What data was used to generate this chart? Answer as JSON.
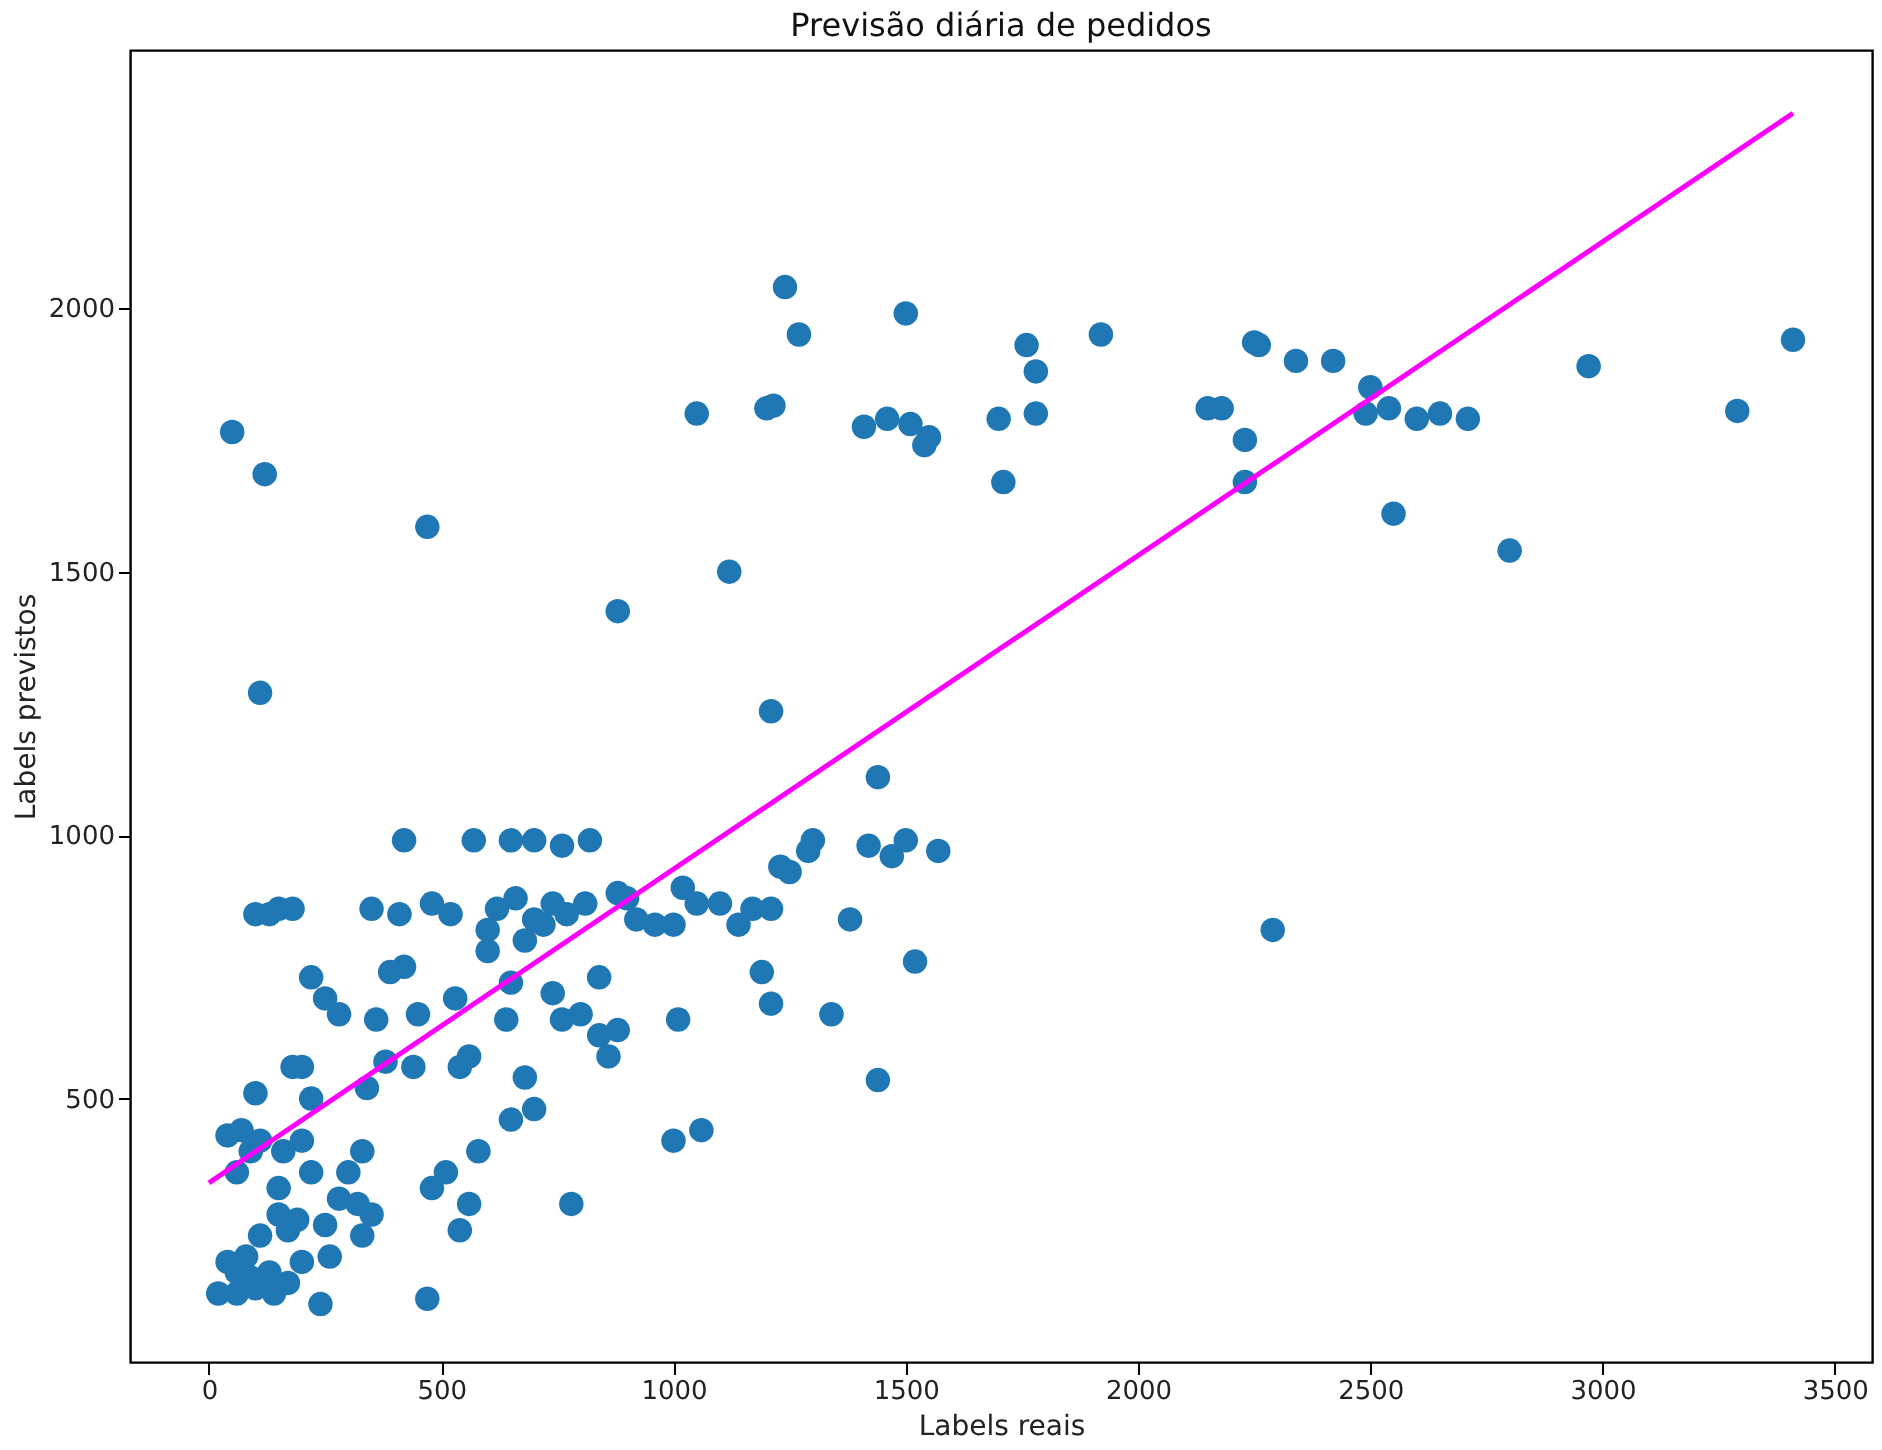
{
  "chart_data": {
    "type": "scatter",
    "title": "Previsão diária de pedidos",
    "xlabel": "Labels reais",
    "ylabel": "Labels previstos",
    "xlim": [
      -170,
      3580
    ],
    "ylim": [
      0,
      2490
    ],
    "xticks": [
      0,
      500,
      1000,
      1500,
      2000,
      2500,
      3000,
      3500
    ],
    "yticks": [
      500,
      1000,
      1500,
      2000
    ],
    "series": [
      {
        "color": "#1f77b4",
        "marker": "circle",
        "x": [
          50,
          120,
          470,
          110,
          880,
          1120,
          1210,
          1240,
          1270,
          1050,
          1200,
          1215,
          1410,
          1460,
          1510,
          1540,
          1550,
          1500,
          1700,
          1710,
          1760,
          1780,
          1780,
          1920,
          2150,
          2180,
          2230,
          2230,
          2260,
          2250,
          2340,
          2420,
          2500,
          2490,
          2540,
          2550,
          2600,
          2650,
          2710,
          2800,
          2970,
          3290,
          3410,
          2290,
          1440,
          1420,
          1470,
          1500,
          1570,
          1520,
          1440,
          1340,
          1380,
          1250,
          1290,
          1300,
          1230,
          1210,
          1170,
          1190,
          1210,
          1010,
          1000,
          1060,
          1100,
          1140,
          1050,
          1000,
          1020,
          960,
          920,
          900,
          880,
          860,
          840,
          880,
          760,
          820,
          780,
          740,
          760,
          800,
          840,
          700,
          650,
          570,
          420,
          660,
          620,
          600,
          600,
          650,
          640,
          680,
          700,
          650,
          580,
          560,
          540,
          480,
          470,
          510,
          540,
          530,
          560,
          450,
          410,
          420,
          390,
          360,
          350,
          480,
          520,
          440,
          380,
          340,
          330,
          300,
          320,
          330,
          350,
          280,
          250,
          220,
          200,
          220,
          180,
          130,
          150,
          180,
          100,
          100,
          70,
          40,
          110,
          90,
          60,
          160,
          150,
          150,
          170,
          110,
          80,
          40,
          60,
          90,
          130,
          200,
          260,
          250,
          240,
          190,
          20,
          60,
          100,
          140,
          170,
          200,
          280,
          220,
          680,
          700,
          740,
          720,
          770,
          810
        ],
        "values": [
          1765,
          1685,
          1585,
          1270,
          1425,
          1500,
          1235,
          2040,
          1950,
          1800,
          1810,
          1815,
          1775,
          1790,
          1780,
          1740,
          1755,
          1990,
          1790,
          1670,
          1930,
          1880,
          1800,
          1950,
          1810,
          1810,
          1670,
          1750,
          1930,
          1935,
          1900,
          1900,
          1850,
          1800,
          1810,
          1610,
          1790,
          1800,
          1790,
          1540,
          1890,
          1805,
          1940,
          820,
          1110,
          980,
          960,
          990,
          970,
          760,
          535,
          660,
          840,
          930,
          970,
          990,
          940,
          860,
          860,
          740,
          680,
          650,
          420,
          440,
          870,
          830,
          870,
          830,
          900,
          830,
          840,
          880,
          630,
          580,
          620,
          890,
          980,
          990,
          300,
          700,
          650,
          660,
          730,
          990,
          990,
          990,
          990,
          880,
          860,
          820,
          780,
          720,
          650,
          540,
          480,
          460,
          400,
          300,
          250,
          330,
          120,
          360,
          560,
          690,
          580,
          660,
          850,
          750,
          740,
          650,
          860,
          870,
          850,
          560,
          570,
          520,
          400,
          360,
          300,
          240,
          280,
          660,
          690,
          730,
          560,
          500,
          560,
          850,
          860,
          860,
          850,
          510,
          440,
          430,
          420,
          400,
          360,
          400,
          330,
          280,
          250,
          240,
          200,
          190,
          170,
          160,
          170,
          190,
          200,
          260,
          110,
          270,
          130,
          130,
          140,
          130,
          150,
          420,
          310,
          360,
          800,
          840,
          870,
          830,
          850,
          870
        ]
      },
      {
        "type": "line",
        "color": "#ff00ff",
        "line_style": "solid",
        "x": [
          0,
          3410
        ],
        "values": [
          340,
          2370
        ]
      }
    ]
  }
}
